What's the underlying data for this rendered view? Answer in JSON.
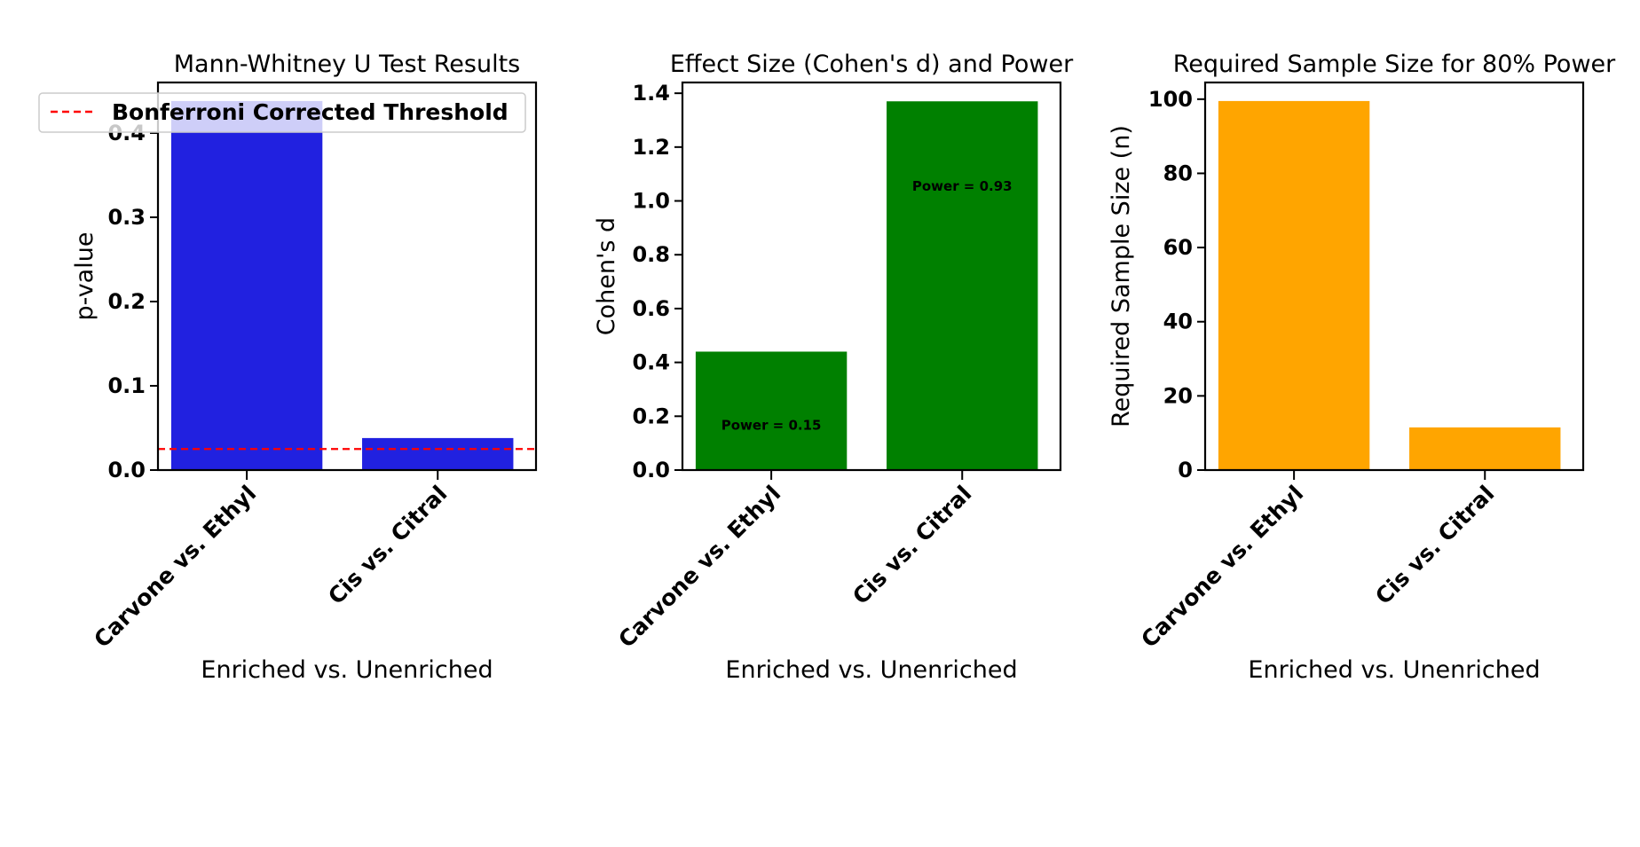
{
  "chart_data": [
    {
      "type": "bar",
      "title": "Mann-Whitney U Test Results",
      "xlabel": "Enriched vs. Unenriched",
      "ylabel": "p-value",
      "categories": [
        "Carvone vs. Ethyl",
        "Cis vs. Citral"
      ],
      "values": [
        0.438,
        0.038
      ],
      "ylim": [
        0,
        0.46
      ],
      "yticks": [
        "0.0",
        "0.1",
        "0.2",
        "0.3",
        "0.4"
      ],
      "color": "#2121e0",
      "reference_line": {
        "value": 0.025,
        "color": "#ff0000",
        "style": "dashed",
        "label": "Bonferroni Corrected Threshold"
      },
      "legend": {
        "location": "top-left",
        "entries": [
          "Bonferroni Corrected Threshold"
        ]
      },
      "grid": false
    },
    {
      "type": "bar",
      "title": "Effect Size (Cohen's d) and Power",
      "xlabel": "Enriched vs. Unenriched",
      "ylabel": "Cohen's d",
      "categories": [
        "Carvone vs. Ethyl",
        "Cis vs. Citral"
      ],
      "values": [
        0.44,
        1.37
      ],
      "ylim": [
        0,
        1.44
      ],
      "yticks": [
        "0.0",
        "0.2",
        "0.4",
        "0.6",
        "0.8",
        "1.0",
        "1.2",
        "1.4"
      ],
      "color": "#008000",
      "annotations": [
        "Power = 0.15",
        "Power = 0.93"
      ],
      "grid": false
    },
    {
      "type": "bar",
      "title": "Required Sample Size for 80% Power",
      "xlabel": "Enriched vs. Unenriched",
      "ylabel": "Required Sample Size (n)",
      "categories": [
        "Carvone vs. Ethyl",
        "Cis vs. Citral"
      ],
      "values": [
        99.5,
        11.5
      ],
      "ylim": [
        0,
        104.5
      ],
      "yticks": [
        "0",
        "20",
        "40",
        "60",
        "80",
        "100"
      ],
      "color": "#ffa500",
      "grid": false
    }
  ]
}
